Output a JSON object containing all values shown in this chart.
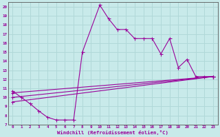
{
  "xlabel": "Windchill (Refroidissement éolien,°C)",
  "xlim": [
    -0.5,
    23.5
  ],
  "ylim": [
    7,
    20.5
  ],
  "xticks": [
    0,
    1,
    2,
    3,
    4,
    5,
    6,
    7,
    8,
    9,
    10,
    11,
    12,
    13,
    14,
    15,
    16,
    17,
    18,
    19,
    20,
    21,
    22,
    23
  ],
  "yticks": [
    7,
    8,
    9,
    10,
    11,
    12,
    13,
    14,
    15,
    16,
    17,
    18,
    19,
    20
  ],
  "bg_color": "#c8eaea",
  "line_color": "#990099",
  "grid_color": "#b0d8d8",
  "lines": [
    {
      "x": [
        0,
        1,
        2,
        3,
        4,
        5,
        6,
        7,
        8,
        10,
        11,
        12,
        13,
        14,
        15,
        16,
        17,
        18,
        19,
        20,
        21,
        22,
        23
      ],
      "y": [
        10.7,
        10.0,
        9.3,
        8.5,
        7.8,
        7.5,
        7.5,
        7.5,
        15.0,
        20.2,
        18.7,
        17.5,
        17.5,
        16.5,
        16.5,
        16.5,
        14.8,
        16.5,
        13.3,
        14.2,
        12.3,
        12.3,
        12.3
      ],
      "markers": true
    },
    {
      "x": [
        0,
        23
      ],
      "y": [
        10.5,
        12.3
      ],
      "markers": true
    },
    {
      "x": [
        0,
        23
      ],
      "y": [
        10.0,
        12.3
      ],
      "markers": true
    },
    {
      "x": [
        0,
        23
      ],
      "y": [
        9.5,
        12.3
      ],
      "markers": true
    }
  ]
}
